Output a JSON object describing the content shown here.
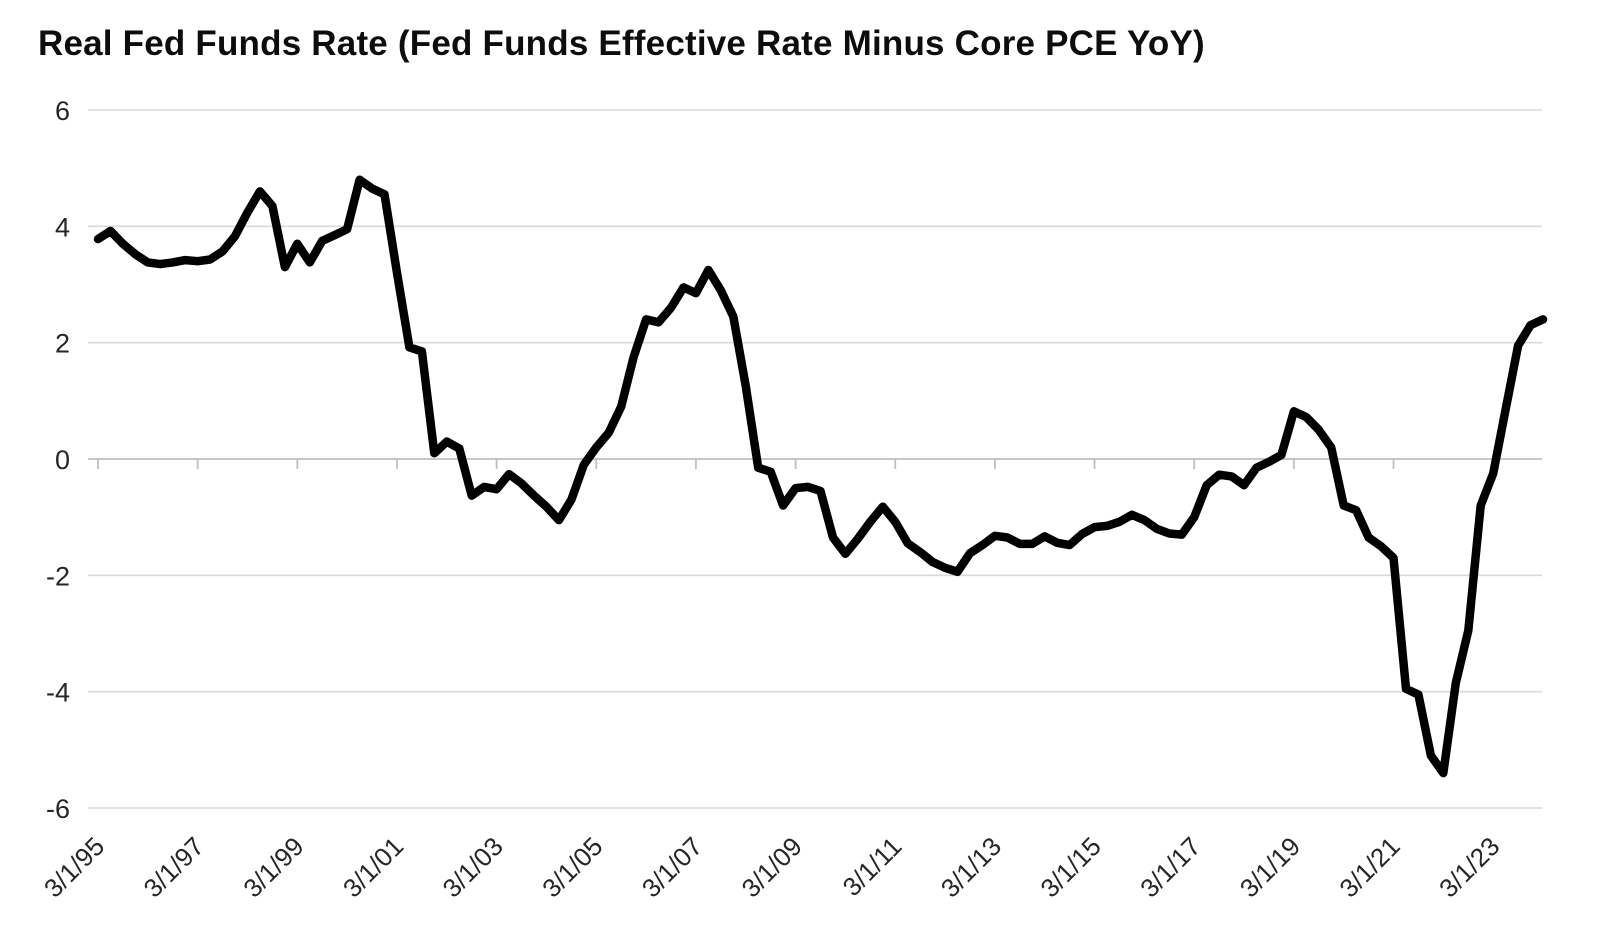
{
  "chart_data": {
    "type": "line",
    "title": "Real Fed Funds Rate (Fed Funds Effective Rate Minus Core PCE YoY)",
    "series_name": "Real Fed Funds Rate",
    "legend": "none",
    "grid": "horizontal",
    "ylim": [
      -6,
      6
    ],
    "y_ticks": [
      6,
      4,
      2,
      0,
      -2,
      -4,
      -6
    ],
    "x_tick_every": 8,
    "line_color": "#000000",
    "grid_color": "#d9d9d9",
    "axis_color": "#bfbfbf",
    "label_color": "#262626",
    "x": [
      "3/1/95",
      "6/1/95",
      "9/1/95",
      "12/1/95",
      "3/1/96",
      "6/1/96",
      "9/1/96",
      "12/1/96",
      "3/1/97",
      "6/1/97",
      "9/1/97",
      "12/1/97",
      "3/1/98",
      "6/1/98",
      "9/1/98",
      "12/1/98",
      "3/1/99",
      "6/1/99",
      "9/1/99",
      "12/1/99",
      "3/1/00",
      "6/1/00",
      "9/1/00",
      "12/1/00",
      "3/1/01",
      "6/1/01",
      "9/1/01",
      "12/1/01",
      "3/1/02",
      "6/1/02",
      "9/1/02",
      "12/1/02",
      "3/1/03",
      "6/1/03",
      "9/1/03",
      "12/1/03",
      "3/1/04",
      "6/1/04",
      "9/1/04",
      "12/1/04",
      "3/1/05",
      "6/1/05",
      "9/1/05",
      "12/1/05",
      "3/1/06",
      "6/1/06",
      "9/1/06",
      "12/1/06",
      "3/1/07",
      "6/1/07",
      "9/1/07",
      "12/1/07",
      "3/1/08",
      "6/1/08",
      "9/1/08",
      "12/1/08",
      "3/1/09",
      "6/1/09",
      "9/1/09",
      "12/1/09",
      "3/1/10",
      "6/1/10",
      "9/1/10",
      "12/1/10",
      "3/1/11",
      "6/1/11",
      "9/1/11",
      "12/1/11",
      "3/1/12",
      "6/1/12",
      "9/1/12",
      "12/1/12",
      "3/1/13",
      "6/1/13",
      "9/1/13",
      "12/1/13",
      "3/1/14",
      "6/1/14",
      "9/1/14",
      "12/1/14",
      "3/1/15",
      "6/1/15",
      "9/1/15",
      "12/1/15",
      "3/1/16",
      "6/1/16",
      "9/1/16",
      "12/1/16",
      "3/1/17",
      "6/1/17",
      "9/1/17",
      "12/1/17",
      "3/1/18",
      "6/1/18",
      "9/1/18",
      "12/1/18",
      "3/1/19",
      "6/1/19",
      "9/1/19",
      "12/1/19",
      "3/1/20",
      "6/1/20",
      "9/1/20",
      "12/1/20",
      "3/1/21",
      "6/1/21",
      "9/1/21",
      "12/1/21",
      "3/1/22",
      "6/1/22",
      "9/1/22",
      "12/1/22",
      "3/1/23",
      "6/1/23",
      "9/1/23",
      "12/1/23",
      "3/1/24"
    ],
    "values": [
      3.78,
      3.92,
      3.7,
      3.52,
      3.38,
      3.35,
      3.38,
      3.42,
      3.4,
      3.43,
      3.57,
      3.83,
      4.24,
      4.6,
      4.35,
      3.3,
      3.7,
      3.38,
      3.75,
      3.85,
      3.95,
      4.8,
      4.65,
      4.55,
      3.2,
      1.92,
      1.85,
      0.1,
      0.3,
      0.18,
      -0.63,
      -0.48,
      -0.52,
      -0.26,
      -0.42,
      -0.63,
      -0.82,
      -1.05,
      -0.7,
      -0.1,
      0.2,
      0.45,
      0.9,
      1.75,
      2.4,
      2.35,
      2.6,
      2.95,
      2.85,
      3.25,
      2.9,
      2.45,
      1.25,
      -0.15,
      -0.22,
      -0.8,
      -0.5,
      -0.48,
      -0.55,
      -1.35,
      -1.63,
      -1.37,
      -1.08,
      -0.82,
      -1.08,
      -1.45,
      -1.6,
      -1.77,
      -1.87,
      -1.94,
      -1.62,
      -1.48,
      -1.32,
      -1.35,
      -1.46,
      -1.46,
      -1.33,
      -1.44,
      -1.48,
      -1.29,
      -1.17,
      -1.15,
      -1.08,
      -0.96,
      -1.05,
      -1.2,
      -1.28,
      -1.3,
      -1.0,
      -0.45,
      -0.27,
      -0.3,
      -0.45,
      -0.15,
      -0.05,
      0.07,
      0.82,
      0.72,
      0.5,
      0.2,
      -0.8,
      -0.88,
      -1.35,
      -1.5,
      -1.7,
      -3.95,
      -4.05,
      -5.1,
      -5.4,
      -3.85,
      -2.95,
      -0.8,
      -0.25,
      0.85,
      1.95,
      2.3,
      2.4
    ]
  }
}
